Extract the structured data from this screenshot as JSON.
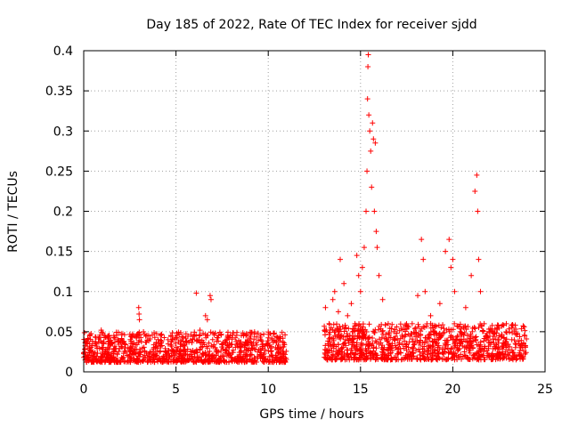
{
  "chart_data": {
    "type": "scatter",
    "title": "Day 185 of 2022, Rate Of TEC Index for receiver sjdd",
    "xlabel": "GPS time / hours",
    "ylabel": "ROTI / TECUs",
    "xlim": [
      0,
      25
    ],
    "ylim": [
      0,
      0.4
    ],
    "x_ticks": [
      0,
      5,
      10,
      15,
      20,
      25
    ],
    "y_ticks": [
      0,
      0.05,
      0.1,
      0.15,
      0.2,
      0.25,
      0.3,
      0.35,
      0.4
    ],
    "x_tick_labels": [
      "0",
      "5",
      "10",
      "15",
      "20",
      "25"
    ],
    "y_tick_labels": [
      "0",
      "0.05",
      "0.1",
      "0.15",
      "0.2",
      "0.25",
      "0.3",
      "0.35",
      "0.4"
    ],
    "grid": true,
    "marker": "+",
    "series_color": "#ff0000",
    "series": [
      {
        "name": "ROTI",
        "points": [
          [
            0.2,
            0.032
          ],
          [
            0.5,
            0.025
          ],
          [
            0.8,
            0.041
          ],
          [
            0.95,
            0.052
          ],
          [
            1.2,
            0.028
          ],
          [
            1.5,
            0.035
          ],
          [
            1.8,
            0.022
          ],
          [
            2.1,
            0.038
          ],
          [
            2.4,
            0.03
          ],
          [
            2.7,
            0.045
          ],
          [
            2.98,
            0.08
          ],
          [
            3.0,
            0.072
          ],
          [
            3.02,
            0.065
          ],
          [
            3.3,
            0.026
          ],
          [
            3.6,
            0.041
          ],
          [
            3.9,
            0.031
          ],
          [
            4.2,
            0.036
          ],
          [
            4.5,
            0.024
          ],
          [
            4.8,
            0.04
          ],
          [
            5.1,
            0.029
          ],
          [
            5.4,
            0.033
          ],
          [
            5.7,
            0.037
          ],
          [
            6.0,
            0.045
          ],
          [
            6.1,
            0.098
          ],
          [
            6.3,
            0.052
          ],
          [
            6.6,
            0.07
          ],
          [
            6.7,
            0.065
          ],
          [
            6.85,
            0.095
          ],
          [
            6.9,
            0.09
          ],
          [
            7.2,
            0.038
          ],
          [
            7.5,
            0.031
          ],
          [
            7.8,
            0.044
          ],
          [
            8.1,
            0.027
          ],
          [
            8.4,
            0.039
          ],
          [
            8.7,
            0.033
          ],
          [
            9.0,
            0.042
          ],
          [
            9.3,
            0.028
          ],
          [
            9.6,
            0.046
          ],
          [
            9.9,
            0.035
          ],
          [
            10.2,
            0.04
          ],
          [
            10.5,
            0.03
          ],
          [
            10.8,
            0.037
          ],
          [
            13.1,
            0.08
          ],
          [
            13.3,
            0.06
          ],
          [
            13.5,
            0.09
          ],
          [
            13.6,
            0.1
          ],
          [
            13.8,
            0.075
          ],
          [
            13.9,
            0.14
          ],
          [
            14.1,
            0.11
          ],
          [
            14.3,
            0.07
          ],
          [
            14.5,
            0.085
          ],
          [
            14.7,
            0.06
          ],
          [
            14.8,
            0.145
          ],
          [
            14.9,
            0.12
          ],
          [
            15.0,
            0.1
          ],
          [
            15.1,
            0.13
          ],
          [
            15.2,
            0.155
          ],
          [
            15.3,
            0.2
          ],
          [
            15.35,
            0.25
          ],
          [
            15.38,
            0.34
          ],
          [
            15.4,
            0.38
          ],
          [
            15.42,
            0.395
          ],
          [
            15.45,
            0.32
          ],
          [
            15.5,
            0.3
          ],
          [
            15.55,
            0.275
          ],
          [
            15.6,
            0.23
          ],
          [
            15.65,
            0.31
          ],
          [
            15.7,
            0.29
          ],
          [
            15.75,
            0.2
          ],
          [
            15.8,
            0.285
          ],
          [
            15.85,
            0.175
          ],
          [
            15.9,
            0.155
          ],
          [
            16.0,
            0.12
          ],
          [
            16.2,
            0.09
          ],
          [
            16.5,
            0.06
          ],
          [
            16.8,
            0.05
          ],
          [
            17.0,
            0.04
          ],
          [
            17.5,
            0.035
          ],
          [
            17.8,
            0.06
          ],
          [
            18.1,
            0.095
          ],
          [
            18.3,
            0.165
          ],
          [
            18.4,
            0.14
          ],
          [
            18.5,
            0.1
          ],
          [
            18.8,
            0.07
          ],
          [
            19.0,
            0.05
          ],
          [
            19.3,
            0.085
          ],
          [
            19.6,
            0.15
          ],
          [
            19.8,
            0.165
          ],
          [
            19.9,
            0.13
          ],
          [
            20.0,
            0.14
          ],
          [
            20.1,
            0.1
          ],
          [
            20.4,
            0.05
          ],
          [
            20.7,
            0.08
          ],
          [
            21.0,
            0.12
          ],
          [
            21.2,
            0.225
          ],
          [
            21.3,
            0.245
          ],
          [
            21.35,
            0.2
          ],
          [
            21.4,
            0.14
          ],
          [
            21.5,
            0.1
          ],
          [
            21.7,
            0.06
          ],
          [
            22.0,
            0.05
          ],
          [
            22.5,
            0.045
          ],
          [
            22.9,
            0.06
          ],
          [
            23.2,
            0.04
          ],
          [
            23.6,
            0.035
          ],
          [
            23.9,
            0.045
          ]
        ]
      }
    ]
  }
}
